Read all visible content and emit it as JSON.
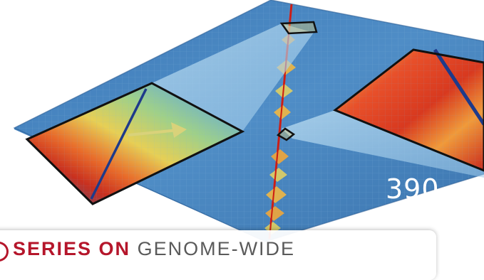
{
  "page_number": "390",
  "banner": {
    "prefix": "SERIES ON",
    "suffix": "GENOME-WIDE",
    "accent_color": "#b5162b",
    "text_color": "#5a5a5a"
  },
  "image": {
    "subject": "hi-c-contact-map",
    "palette": [
      "#2a5f9e",
      "#4f8ec8",
      "#8cc6cf",
      "#d8dc6a",
      "#f3a13a",
      "#d22a1e"
    ]
  }
}
